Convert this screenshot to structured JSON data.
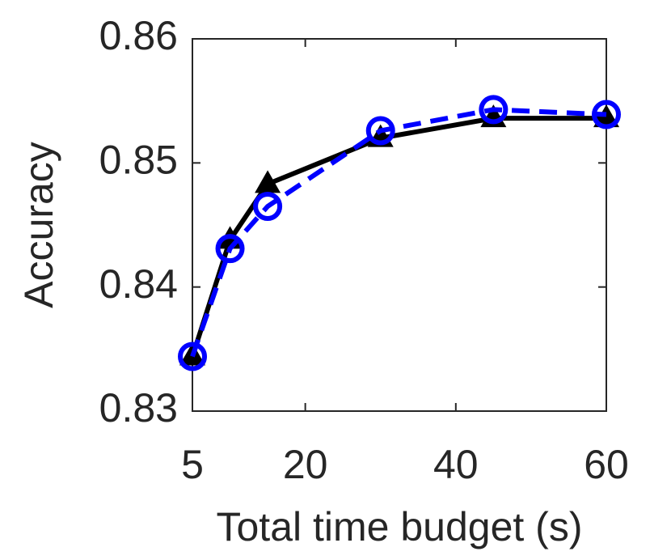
{
  "chart_data": {
    "type": "line",
    "xlabel": "Total time budget (s)",
    "ylabel": "Accuracy",
    "x": [
      5,
      10,
      15,
      30,
      45,
      60
    ],
    "series": [
      {
        "color": "#000000",
        "marker": "triangle",
        "linestyle": "solid",
        "values": [
          0.8344,
          0.8438,
          0.8483,
          0.852,
          0.8536,
          0.8536
        ]
      },
      {
        "color": "#0000ff",
        "marker": "circle",
        "linestyle": "dashed",
        "values": [
          0.8344,
          0.8431,
          0.8465,
          0.8526,
          0.8543,
          0.8539
        ]
      }
    ],
    "xlim": [
      5,
      60
    ],
    "xticks": [
      5,
      20,
      40,
      60
    ],
    "ylim": [
      0.83,
      0.86
    ],
    "yticks": [
      0.83,
      0.84,
      0.85,
      0.86
    ]
  }
}
